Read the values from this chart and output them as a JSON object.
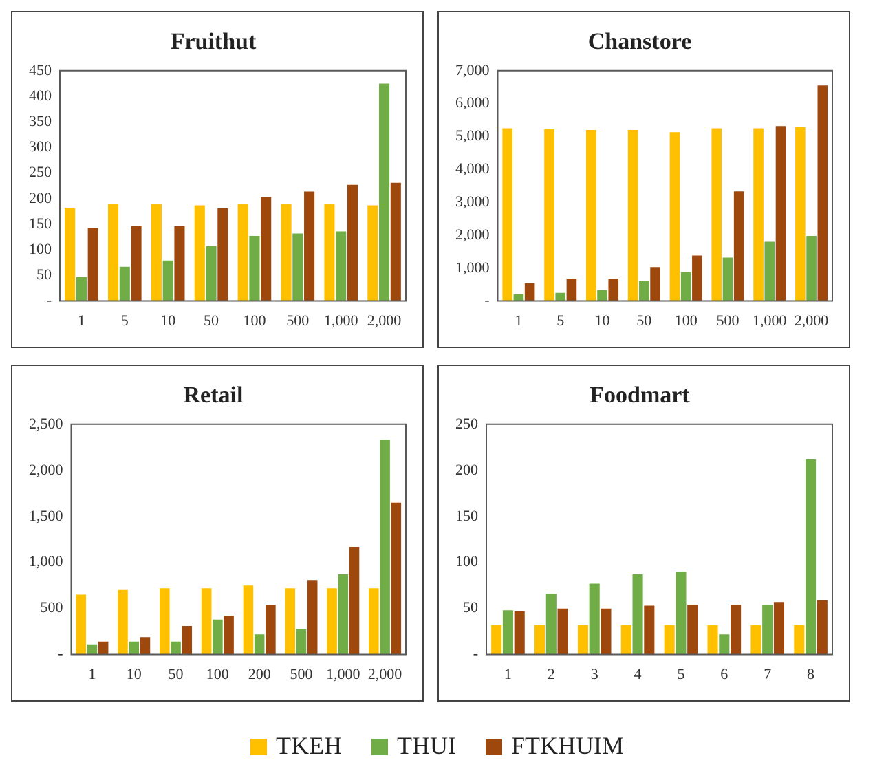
{
  "chart_data": [
    {
      "type": "bar",
      "title": "Fruithut",
      "categories": [
        "1",
        "5",
        "10",
        "50",
        "100",
        "500",
        "1,000",
        "2,000"
      ],
      "series": [
        {
          "name": "TKEH",
          "color": "#ffc000",
          "values": [
            182,
            190,
            190,
            187,
            190,
            190,
            190,
            187
          ]
        },
        {
          "name": "THUI",
          "color": "#70ad47",
          "values": [
            47,
            67,
            79,
            107,
            127,
            132,
            136,
            425
          ]
        },
        {
          "name": "FTKHUIM",
          "color": "#9e480e",
          "values": [
            143,
            146,
            146,
            181,
            203,
            214,
            227,
            231
          ]
        }
      ],
      "ylim": [
        0,
        450
      ],
      "yticks": [
        {
          "value": 0,
          "label": "-"
        },
        50,
        100,
        150,
        200,
        250,
        300,
        350,
        400,
        450
      ],
      "grid": false,
      "legend": "bottom"
    },
    {
      "type": "bar",
      "title": "Chanstore",
      "categories": [
        "1",
        "5",
        "10",
        "50",
        "100",
        "500",
        "1,000",
        "2,000"
      ],
      "series": [
        {
          "name": "TKEH",
          "color": "#ffc000",
          "values": [
            5250,
            5220,
            5200,
            5200,
            5130,
            5250,
            5250,
            5280
          ]
        },
        {
          "name": "THUI",
          "color": "#70ad47",
          "values": [
            200,
            250,
            330,
            600,
            870,
            1320,
            1800,
            1980
          ]
        },
        {
          "name": "FTKHUIM",
          "color": "#9e480e",
          "values": [
            540,
            680,
            680,
            1030,
            1380,
            3330,
            5320,
            6550
          ]
        }
      ],
      "ylim": [
        0,
        7000
      ],
      "yticks": [
        {
          "value": 0,
          "label": "-"
        },
        {
          "value": 1000,
          "label": "1,000"
        },
        {
          "value": 2000,
          "label": "2,000"
        },
        {
          "value": 3000,
          "label": "3,000"
        },
        {
          "value": 4000,
          "label": "4,000"
        },
        {
          "value": 5000,
          "label": "5,000"
        },
        {
          "value": 6000,
          "label": "6,000"
        },
        {
          "value": 7000,
          "label": "7,000"
        }
      ],
      "grid": false,
      "legend": "bottom"
    },
    {
      "type": "bar",
      "title": "Retail",
      "categories": [
        "1",
        "10",
        "50",
        "100",
        "200",
        "500",
        "1,000",
        "2,000"
      ],
      "series": [
        {
          "name": "TKEH",
          "color": "#ffc000",
          "values": [
            650,
            700,
            720,
            720,
            750,
            720,
            720,
            720
          ]
        },
        {
          "name": "THUI",
          "color": "#70ad47",
          "values": [
            110,
            140,
            140,
            380,
            220,
            280,
            870,
            2330
          ]
        },
        {
          "name": "FTKHUIM",
          "color": "#9e480e",
          "values": [
            140,
            190,
            310,
            420,
            540,
            810,
            1170,
            1650
          ]
        }
      ],
      "ylim": [
        0,
        2500
      ],
      "yticks": [
        {
          "value": 0,
          "label": "-"
        },
        500,
        {
          "value": 1000,
          "label": "1,000"
        },
        {
          "value": 1500,
          "label": "1,500"
        },
        {
          "value": 2000,
          "label": "2,000"
        },
        {
          "value": 2500,
          "label": "2,500"
        }
      ],
      "grid": false,
      "legend": "bottom"
    },
    {
      "type": "bar",
      "title": "Foodmart",
      "categories": [
        "1",
        "2",
        "3",
        "4",
        "5",
        "6",
        "7",
        "8"
      ],
      "series": [
        {
          "name": "TKEH",
          "color": "#ffc000",
          "values": [
            32,
            32,
            32,
            32,
            32,
            32,
            32,
            32
          ]
        },
        {
          "name": "THUI",
          "color": "#70ad47",
          "values": [
            48,
            66,
            77,
            87,
            90,
            22,
            54,
            212
          ]
        },
        {
          "name": "FTKHUIM",
          "color": "#9e480e",
          "values": [
            47,
            50,
            50,
            53,
            54,
            54,
            57,
            59
          ]
        }
      ],
      "ylim": [
        0,
        250
      ],
      "yticks": [
        {
          "value": 0,
          "label": "-"
        },
        50,
        100,
        150,
        200,
        250
      ],
      "grid": false,
      "legend": "bottom"
    }
  ]
}
